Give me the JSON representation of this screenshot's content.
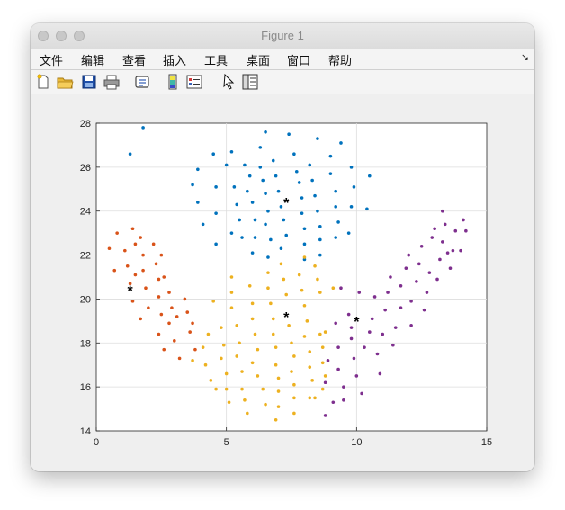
{
  "window": {
    "title": "Figure 1"
  },
  "menu": {
    "items": [
      "文件",
      "编辑",
      "查看",
      "插入",
      "工具",
      "桌面",
      "窗口",
      "帮助"
    ]
  },
  "toolbar": {
    "icons": [
      "new-figure-icon",
      "open-file-icon",
      "save-icon",
      "print-icon",
      "link-icon",
      "colorbar-icon",
      "legend-icon",
      "pointer-icon",
      "property-editor-icon"
    ]
  },
  "chart_data": {
    "type": "scatter",
    "title": "",
    "xlabel": "",
    "ylabel": "",
    "xlim": [
      0,
      15
    ],
    "ylim": [
      14,
      28
    ],
    "x_ticks": [
      "0",
      "5",
      "10",
      "15"
    ],
    "y_ticks": [
      "14",
      "16",
      "18",
      "20",
      "22",
      "24",
      "26",
      "28"
    ],
    "grid": true,
    "series": [
      {
        "color": "#0072BD",
        "points": [
          [
            1.8,
            27.8
          ],
          [
            1.3,
            26.6
          ],
          [
            3.9,
            25.9
          ],
          [
            4.5,
            26.6
          ],
          [
            3.7,
            25.2
          ],
          [
            3.9,
            24.4
          ],
          [
            4.6,
            25.1
          ],
          [
            4.1,
            23.4
          ],
          [
            4.6,
            23.9
          ],
          [
            4.6,
            22.5
          ],
          [
            5.0,
            26.1
          ],
          [
            5.2,
            26.7
          ],
          [
            5.3,
            25.1
          ],
          [
            5.4,
            24.3
          ],
          [
            5.5,
            23.6
          ],
          [
            5.2,
            23.0
          ],
          [
            5.6,
            22.8
          ],
          [
            5.7,
            26.1
          ],
          [
            5.9,
            25.6
          ],
          [
            5.8,
            24.9
          ],
          [
            6.0,
            24.4
          ],
          [
            6.1,
            23.6
          ],
          [
            6.1,
            22.8
          ],
          [
            6.0,
            22.1
          ],
          [
            6.3,
            26.9
          ],
          [
            6.3,
            26.0
          ],
          [
            6.4,
            25.4
          ],
          [
            6.5,
            24.8
          ],
          [
            6.6,
            24.0
          ],
          [
            6.5,
            23.4
          ],
          [
            6.7,
            22.7
          ],
          [
            6.6,
            21.9
          ],
          [
            6.5,
            27.6
          ],
          [
            6.8,
            26.3
          ],
          [
            6.9,
            25.6
          ],
          [
            7.0,
            24.9
          ],
          [
            7.1,
            24.2
          ],
          [
            7.2,
            23.6
          ],
          [
            7.3,
            22.9
          ],
          [
            7.1,
            22.3
          ],
          [
            7.4,
            27.5
          ],
          [
            7.6,
            26.6
          ],
          [
            7.7,
            25.8
          ],
          [
            7.8,
            25.3
          ],
          [
            7.9,
            24.6
          ],
          [
            7.9,
            23.9
          ],
          [
            8.0,
            23.2
          ],
          [
            8.0,
            22.5
          ],
          [
            8.0,
            21.8
          ],
          [
            8.2,
            26.1
          ],
          [
            8.3,
            25.4
          ],
          [
            8.4,
            24.7
          ],
          [
            8.5,
            24.0
          ],
          [
            8.6,
            23.3
          ],
          [
            8.6,
            22.7
          ],
          [
            8.6,
            22.0
          ],
          [
            8.5,
            27.3
          ],
          [
            9.0,
            26.5
          ],
          [
            9.0,
            25.7
          ],
          [
            9.2,
            24.9
          ],
          [
            9.2,
            24.2
          ],
          [
            9.3,
            23.5
          ],
          [
            9.2,
            22.8
          ],
          [
            9.4,
            27.1
          ],
          [
            9.8,
            26.0
          ],
          [
            9.9,
            25.1
          ],
          [
            9.8,
            24.2
          ],
          [
            10.5,
            25.6
          ],
          [
            10.4,
            24.1
          ],
          [
            9.7,
            23.0
          ]
        ]
      },
      {
        "color": "#D95319",
        "points": [
          [
            0.5,
            22.3
          ],
          [
            0.8,
            23.0
          ],
          [
            0.7,
            21.3
          ],
          [
            1.1,
            22.2
          ],
          [
            1.2,
            21.5
          ],
          [
            1.4,
            23.2
          ],
          [
            1.5,
            22.5
          ],
          [
            1.3,
            20.7
          ],
          [
            1.4,
            19.9
          ],
          [
            1.5,
            21.1
          ],
          [
            1.7,
            22.8
          ],
          [
            1.8,
            22.0
          ],
          [
            1.8,
            21.3
          ],
          [
            1.9,
            20.5
          ],
          [
            1.7,
            19.1
          ],
          [
            2.0,
            19.6
          ],
          [
            2.2,
            22.5
          ],
          [
            2.3,
            21.6
          ],
          [
            2.4,
            20.9
          ],
          [
            2.4,
            20.1
          ],
          [
            2.5,
            19.3
          ],
          [
            2.4,
            18.4
          ],
          [
            2.6,
            17.7
          ],
          [
            2.5,
            22.0
          ],
          [
            2.6,
            21.0
          ],
          [
            2.8,
            20.3
          ],
          [
            2.9,
            19.6
          ],
          [
            2.8,
            18.9
          ],
          [
            3.0,
            18.1
          ],
          [
            3.2,
            17.3
          ],
          [
            3.1,
            19.2
          ],
          [
            3.4,
            20.0
          ],
          [
            3.5,
            19.4
          ],
          [
            3.6,
            18.5
          ],
          [
            3.8,
            17.7
          ],
          [
            3.7,
            18.9
          ]
        ]
      },
      {
        "color": "#EDB120",
        "points": [
          [
            3.7,
            17.2
          ],
          [
            4.1,
            17.8
          ],
          [
            4.3,
            18.4
          ],
          [
            4.2,
            17.0
          ],
          [
            4.4,
            16.3
          ],
          [
            4.6,
            15.9
          ],
          [
            4.5,
            19.9
          ],
          [
            4.8,
            18.7
          ],
          [
            4.9,
            17.9
          ],
          [
            4.8,
            17.3
          ],
          [
            5.0,
            16.6
          ],
          [
            5.0,
            15.9
          ],
          [
            5.1,
            15.3
          ],
          [
            5.2,
            21.0
          ],
          [
            5.2,
            20.3
          ],
          [
            5.2,
            19.6
          ],
          [
            5.4,
            18.8
          ],
          [
            5.5,
            18.0
          ],
          [
            5.4,
            17.4
          ],
          [
            5.6,
            16.7
          ],
          [
            5.6,
            15.9
          ],
          [
            5.7,
            15.4
          ],
          [
            5.8,
            14.8
          ],
          [
            5.9,
            20.6
          ],
          [
            6.0,
            19.8
          ],
          [
            6.0,
            19.1
          ],
          [
            6.1,
            18.4
          ],
          [
            6.2,
            17.7
          ],
          [
            6.0,
            17.1
          ],
          [
            6.2,
            16.5
          ],
          [
            6.4,
            15.9
          ],
          [
            6.5,
            15.2
          ],
          [
            6.6,
            21.2
          ],
          [
            6.6,
            20.5
          ],
          [
            6.7,
            19.8
          ],
          [
            6.8,
            19.1
          ],
          [
            6.8,
            18.4
          ],
          [
            6.9,
            17.8
          ],
          [
            6.9,
            17.0
          ],
          [
            7.0,
            16.4
          ],
          [
            7.0,
            15.8
          ],
          [
            7.0,
            15.1
          ],
          [
            6.9,
            14.5
          ],
          [
            7.1,
            21.6
          ],
          [
            7.2,
            20.9
          ],
          [
            7.3,
            20.2
          ],
          [
            7.4,
            18.8
          ],
          [
            7.5,
            18.0
          ],
          [
            7.6,
            17.4
          ],
          [
            7.5,
            16.7
          ],
          [
            7.6,
            16.1
          ],
          [
            7.6,
            15.5
          ],
          [
            7.6,
            14.8
          ],
          [
            7.8,
            21.1
          ],
          [
            7.9,
            20.4
          ],
          [
            8.0,
            19.7
          ],
          [
            8.1,
            19.0
          ],
          [
            8.0,
            18.3
          ],
          [
            8.2,
            17.6
          ],
          [
            8.2,
            16.9
          ],
          [
            8.3,
            16.3
          ],
          [
            8.2,
            15.5
          ],
          [
            8.5,
            20.9
          ],
          [
            8.6,
            20.3
          ],
          [
            8.6,
            18.4
          ],
          [
            8.7,
            17.8
          ],
          [
            8.7,
            17.1
          ],
          [
            8.8,
            16.5
          ],
          [
            8.7,
            15.9
          ],
          [
            8.4,
            15.5
          ],
          [
            8.4,
            21.5
          ],
          [
            8.0,
            21.9
          ],
          [
            9.1,
            20.5
          ],
          [
            8.8,
            18.5
          ]
        ]
      },
      {
        "color": "#7E2F8E",
        "points": [
          [
            8.9,
            17.2
          ],
          [
            8.8,
            16.2
          ],
          [
            8.8,
            14.7
          ],
          [
            9.1,
            15.3
          ],
          [
            9.2,
            18.9
          ],
          [
            9.3,
            17.8
          ],
          [
            9.3,
            16.8
          ],
          [
            9.5,
            16.0
          ],
          [
            9.5,
            15.4
          ],
          [
            9.7,
            19.3
          ],
          [
            9.8,
            18.2
          ],
          [
            9.9,
            17.3
          ],
          [
            10.0,
            16.5
          ],
          [
            10.2,
            15.7
          ],
          [
            10.3,
            17.8
          ],
          [
            10.5,
            18.5
          ],
          [
            10.6,
            19.1
          ],
          [
            10.7,
            20.1
          ],
          [
            10.8,
            17.5
          ],
          [
            10.9,
            16.6
          ],
          [
            10.1,
            20.3
          ],
          [
            9.8,
            18.7
          ],
          [
            9.4,
            20.5
          ],
          [
            11.0,
            18.4
          ],
          [
            11.1,
            19.5
          ],
          [
            11.2,
            20.3
          ],
          [
            11.3,
            21.0
          ],
          [
            11.4,
            17.9
          ],
          [
            11.5,
            18.7
          ],
          [
            11.7,
            19.6
          ],
          [
            11.7,
            20.6
          ],
          [
            11.9,
            21.4
          ],
          [
            12.0,
            22.0
          ],
          [
            12.1,
            18.8
          ],
          [
            12.1,
            19.9
          ],
          [
            12.3,
            20.8
          ],
          [
            12.4,
            21.6
          ],
          [
            12.5,
            22.4
          ],
          [
            12.6,
            19.5
          ],
          [
            12.7,
            20.3
          ],
          [
            12.8,
            21.2
          ],
          [
            12.9,
            22.8
          ],
          [
            13.1,
            20.9
          ],
          [
            13.2,
            21.8
          ],
          [
            13.3,
            22.6
          ],
          [
            13.4,
            23.4
          ],
          [
            13.3,
            24.0
          ],
          [
            13.6,
            21.4
          ],
          [
            13.7,
            22.2
          ],
          [
            13.8,
            23.1
          ],
          [
            14.0,
            22.2
          ],
          [
            14.1,
            23.6
          ],
          [
            14.2,
            23.1
          ],
          [
            13.5,
            22.1
          ],
          [
            13.0,
            23.2
          ]
        ]
      }
    ],
    "centroids": [
      [
        7.3,
        24.4
      ],
      [
        1.3,
        20.4
      ],
      [
        7.3,
        19.2
      ],
      [
        10.0,
        19.0
      ]
    ]
  }
}
